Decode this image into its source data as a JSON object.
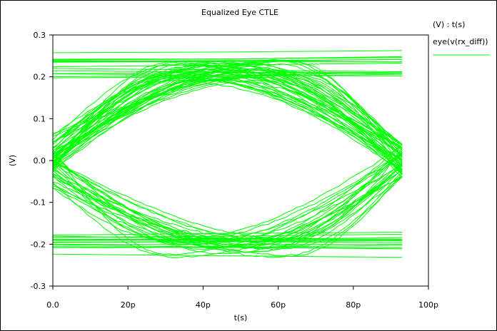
{
  "chart_data": {
    "type": "line",
    "title": "Equalized Eye CTLE",
    "xlabel": "t(s)",
    "ylabel": "(V)",
    "xlim": [
      0,
      100
    ],
    "ylim": [
      -0.3,
      0.3
    ],
    "x_ticks": [
      0,
      20,
      40,
      60,
      80,
      100
    ],
    "x_tick_labels": [
      "0.0",
      "20p",
      "40p",
      "60p",
      "80p",
      "100p"
    ],
    "y_ticks": [
      0.3,
      0.2,
      0.1,
      0.0,
      -0.1,
      -0.2,
      -0.3
    ],
    "y_tick_labels": [
      "0.3",
      "0.2",
      "0.1",
      "0.0",
      "-0.1",
      "-0.2",
      "-0.3"
    ],
    "grid": false,
    "legend": {
      "placement": "top-right-outside",
      "header": "(V) : t(s)",
      "entries": [
        {
          "name": "eye(v(rx_diff))",
          "color": "#00ff00"
        }
      ]
    },
    "series": [
      {
        "name": "eye(v(rx_diff))",
        "color": "#00ff00",
        "ui_period": 93,
        "high_level_range": [
          0.19,
          0.265
        ],
        "low_level_range": [
          -0.25,
          -0.175
        ],
        "crossing_times": [
          0,
          93
        ],
        "crossing_level": 0.0,
        "eye_top_center": [
          50,
          0.22
        ],
        "eye_bottom_center": [
          45,
          -0.2
        ]
      }
    ]
  }
}
